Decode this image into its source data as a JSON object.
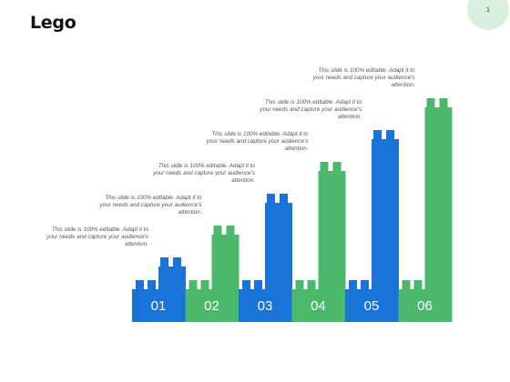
{
  "title": "Lego",
  "page_number": "1",
  "colors": {
    "blue": "#1a73d9",
    "green": "#4cb86b",
    "badge": "#d9efdf"
  },
  "steps": [
    {
      "label": "01",
      "color": "blue",
      "level": 1,
      "note": "This slide is 100% editable. Adapt it to your needs and capture your audience's attention."
    },
    {
      "label": "02",
      "color": "green",
      "level": 2,
      "note": "This slide is 100% editable. Adapt it to your needs and capture your audience's attention."
    },
    {
      "label": "03",
      "color": "blue",
      "level": 3,
      "note": "This slide is 100% editable. Adapt it to your needs and capture your audience's attention."
    },
    {
      "label": "04",
      "color": "green",
      "level": 4,
      "note": "This slide is 100% editable. Adapt it to your needs and capture your audience's attention."
    },
    {
      "label": "05",
      "color": "blue",
      "level": 5,
      "note": "This slide is 100% editable. Adapt it to your needs and capture your audience's attention."
    },
    {
      "label": "06",
      "color": "green",
      "level": 6,
      "note": "This slide is 100% editable. Adapt it to your needs and capture your audience's attention."
    }
  ]
}
